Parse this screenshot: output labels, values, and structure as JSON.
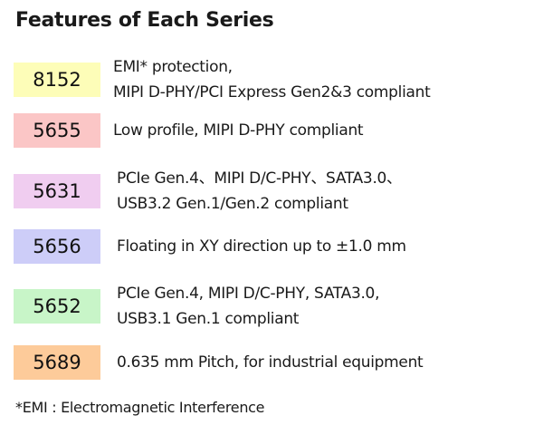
{
  "title": "Features of Each Series",
  "series": [
    {
      "code": "8152",
      "color": "#fdfdb8",
      "lines": [
        "EMI* protection,",
        "MIPI D-PHY/PCI Express Gen2&3 compliant"
      ]
    },
    {
      "code": "5655",
      "color": "#fbc6c6",
      "lines": [
        "Low profile, MIPI D-PHY compliant"
      ]
    },
    {
      "code": "5631",
      "color": "#f0cdf0",
      "lines": [
        "PCIe Gen.4、MIPI D/C-PHY、SATA3.0、",
        "USB3.2 Gen.1/Gen.2 compliant"
      ]
    },
    {
      "code": "5656",
      "color": "#cdcdf8",
      "lines": [
        "Floating in XY direction up to ±1.0 mm"
      ]
    },
    {
      "code": "5652",
      "color": "#c8f5c8",
      "lines": [
        "PCIe Gen.4, MIPI D/C-PHY, SATA3.0,",
        "USB3.1 Gen.1 compliant"
      ]
    },
    {
      "code": "5689",
      "color": "#fdcb9a",
      "lines": [
        "0.635 mm Pitch, for industrial equipment"
      ]
    }
  ],
  "footnote": "*EMI : Electromagnetic Interference"
}
